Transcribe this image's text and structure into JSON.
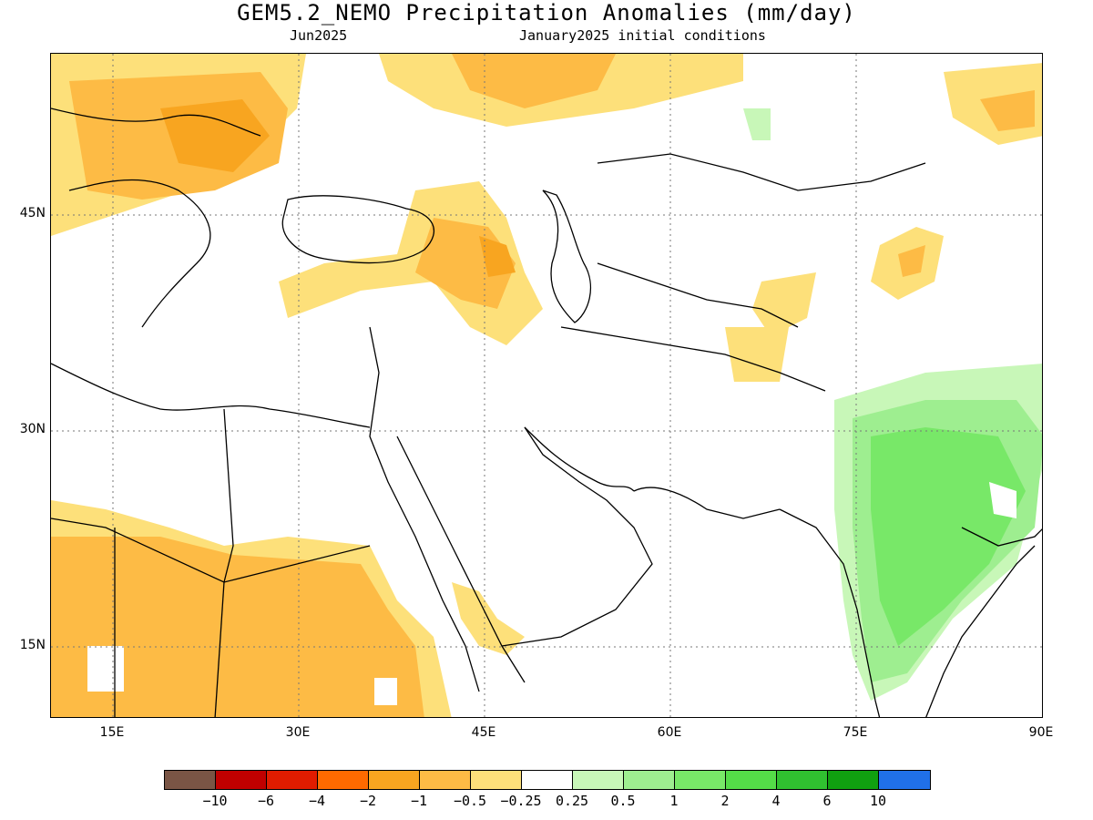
{
  "title": "GEM5.2_NEMO Precipitation Anomalies (mm/day)",
  "subtitle_left": "Jun2025",
  "subtitle_right": "January2025 initial conditions",
  "lat_labels": [
    "45N",
    "30N",
    "15N"
  ],
  "lon_labels": [
    "15E",
    "30E",
    "45E",
    "60E",
    "75E",
    "90E"
  ],
  "colorbar": {
    "colors": [
      "#7a5545",
      "#c00000",
      "#e01c00",
      "#ff6a00",
      "#f8a520",
      "#fdbb45",
      "#fde07a",
      "#ffffff",
      "#c8f7b8",
      "#9eee90",
      "#78e868",
      "#54dc48",
      "#30c030",
      "#10a010",
      "#2070e8"
    ],
    "labels": [
      "-10",
      "-6",
      "-4",
      "-2",
      "-1",
      "-0.5",
      "-0.25",
      "0.25",
      "0.5",
      "1",
      "2",
      "4",
      "6",
      "10"
    ]
  }
}
